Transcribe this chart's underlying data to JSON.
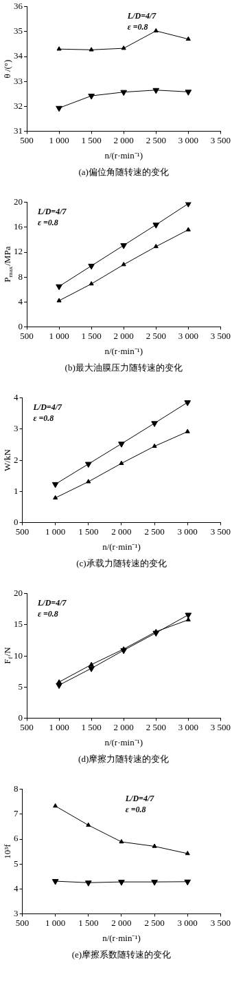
{
  "chart_data": [
    {
      "type": "line",
      "title": "(a)偏位角随转速的变化",
      "xlabel": "n/(r·min⁻¹)",
      "ylabel": "θ /(°)",
      "x": [
        1000,
        1500,
        2000,
        2500,
        3000
      ],
      "xlim": [
        500,
        3500
      ],
      "xticks": [
        {
          "value": 500,
          "label": "500"
        },
        {
          "value": 1000,
          "label": "1 000"
        },
        {
          "value": 1500,
          "label": "1 500"
        },
        {
          "value": 2000,
          "label": "2 000"
        },
        {
          "value": 2500,
          "label": "2 500"
        },
        {
          "value": 3000,
          "label": "3 000"
        },
        {
          "value": 3500,
          "label": "3 500"
        }
      ],
      "ylim": [
        31,
        36
      ],
      "yticks": [
        31,
        32,
        33,
        34,
        35,
        36
      ],
      "grid": false,
      "legend": false,
      "line_style": "solid",
      "annotations": [
        "L/D=4/7",
        "ε =0.8"
      ],
      "series": [
        {
          "color": "#000000",
          "marker": "triangle",
          "values": [
            34.3,
            34.27,
            34.33,
            35.03,
            34.7
          ]
        },
        {
          "color": "#000000",
          "marker": "triangle_down",
          "values": [
            31.93,
            32.42,
            32.57,
            32.65,
            32.58
          ]
        }
      ]
    },
    {
      "type": "line",
      "title": "(b)最大油膜压力随转速的变化",
      "xlabel": "n/(r·min⁻¹)",
      "ylabel": "P$_{max}$/MPa",
      "x": [
        1000,
        1500,
        2000,
        2500,
        3000
      ],
      "xlim": [
        500,
        3500
      ],
      "xticks": [
        {
          "value": 500,
          "label": "500"
        },
        {
          "value": 1000,
          "label": "1 000"
        },
        {
          "value": 1500,
          "label": "1 500"
        },
        {
          "value": 2000,
          "label": "2 000"
        },
        {
          "value": 2500,
          "label": "2 500"
        },
        {
          "value": 3000,
          "label": "3 000"
        },
        {
          "value": 3500,
          "label": "3 500"
        }
      ],
      "ylim": [
        0,
        20
      ],
      "yticks": [
        0,
        4,
        8,
        12,
        16,
        20
      ],
      "grid": false,
      "legend": false,
      "line_style": "solid",
      "annotations": [
        "L/D=4/7",
        "ε =0.8"
      ],
      "series": [
        {
          "color": "#000000",
          "marker": "triangle",
          "values": [
            4.2,
            6.9,
            10.0,
            12.9,
            15.6
          ]
        },
        {
          "color": "#000000",
          "marker": "triangle_down",
          "values": [
            6.5,
            9.8,
            13.1,
            16.4,
            19.8
          ]
        }
      ]
    },
    {
      "type": "line",
      "title": "(c)承载力随转速的变化",
      "xlabel": "n/(r·min⁻¹)",
      "ylabel": "W/kN",
      "x": [
        1000,
        1500,
        2000,
        2500,
        3000
      ],
      "xlim": [
        500,
        3500
      ],
      "xticks": [
        {
          "value": 500,
          "label": "500"
        },
        {
          "value": 1000,
          "label": "1 000"
        },
        {
          "value": 1500,
          "label": "1 500"
        },
        {
          "value": 2000,
          "label": "2 000"
        },
        {
          "value": 2500,
          "label": "2 500"
        },
        {
          "value": 3000,
          "label": "3 000"
        },
        {
          "value": 3500,
          "label": "3 500"
        }
      ],
      "ylim": [
        0,
        4
      ],
      "yticks": [
        0,
        1,
        2,
        3,
        4
      ],
      "grid": false,
      "legend": false,
      "line_style": "solid",
      "annotations": [
        "L/D=4/7",
        "ε =0.8"
      ],
      "series": [
        {
          "color": "#000000",
          "marker": "triangle",
          "values": [
            0.79,
            1.31,
            1.9,
            2.45,
            2.92
          ]
        },
        {
          "color": "#000000",
          "marker": "triangle_down",
          "values": [
            1.23,
            1.88,
            2.53,
            3.19,
            3.86
          ]
        }
      ]
    },
    {
      "type": "line",
      "title": "(d)摩擦力随转速的变化",
      "xlabel": "n/(r·min⁻¹)",
      "ylabel": "F$_{f}$/N",
      "x": [
        1000,
        1500,
        2000,
        2500,
        3000
      ],
      "xlim": [
        500,
        3500
      ],
      "xticks": [
        {
          "value": 500,
          "label": "500"
        },
        {
          "value": 1000,
          "label": "1 000"
        },
        {
          "value": 1500,
          "label": "1 500"
        },
        {
          "value": 2000,
          "label": "2 000"
        },
        {
          "value": 2500,
          "label": "2 500"
        },
        {
          "value": 3000,
          "label": "3 000"
        },
        {
          "value": 3500,
          "label": "3 500"
        }
      ],
      "ylim": [
        0,
        20
      ],
      "yticks": [
        0,
        5,
        10,
        15,
        20
      ],
      "grid": false,
      "legend": false,
      "line_style": "solid",
      "annotations": [
        "L/D=4/7",
        "ε =0.8"
      ],
      "series": [
        {
          "color": "#000000",
          "marker": "triangle",
          "values": [
            5.8,
            8.6,
            11.1,
            13.9,
            15.8
          ]
        },
        {
          "color": "#000000",
          "marker": "triangle_down",
          "values": [
            5.3,
            8.0,
            10.9,
            13.7,
            16.6
          ]
        }
      ]
    },
    {
      "type": "line",
      "title": "(e)摩擦系数随转速的变化",
      "xlabel": "n/(r·min⁻¹)",
      "ylabel": "10³f",
      "x": [
        1000,
        1500,
        2000,
        2500,
        3000
      ],
      "xlim": [
        500,
        3500
      ],
      "xticks": [
        {
          "value": 500,
          "label": "500"
        },
        {
          "value": 1000,
          "label": "1 000"
        },
        {
          "value": 1500,
          "label": "1 500"
        },
        {
          "value": 2000,
          "label": "2 000"
        },
        {
          "value": 2500,
          "label": "2 500"
        },
        {
          "value": 3000,
          "label": "3 000"
        },
        {
          "value": 3500,
          "label": "3 500"
        }
      ],
      "ylim": [
        3,
        8
      ],
      "yticks": [
        3,
        4,
        5,
        6,
        7,
        8
      ],
      "grid": false,
      "legend": false,
      "line_style": "solid",
      "annotations": [
        "L/D=4/7",
        "ε =0.8"
      ],
      "series": [
        {
          "color": "#000000",
          "marker": "triangle",
          "values": [
            7.33,
            6.56,
            5.89,
            5.71,
            5.42
          ]
        },
        {
          "color": "#000000",
          "marker": "triangle_down",
          "values": [
            4.31,
            4.25,
            4.28,
            4.28,
            4.29
          ]
        }
      ]
    }
  ]
}
